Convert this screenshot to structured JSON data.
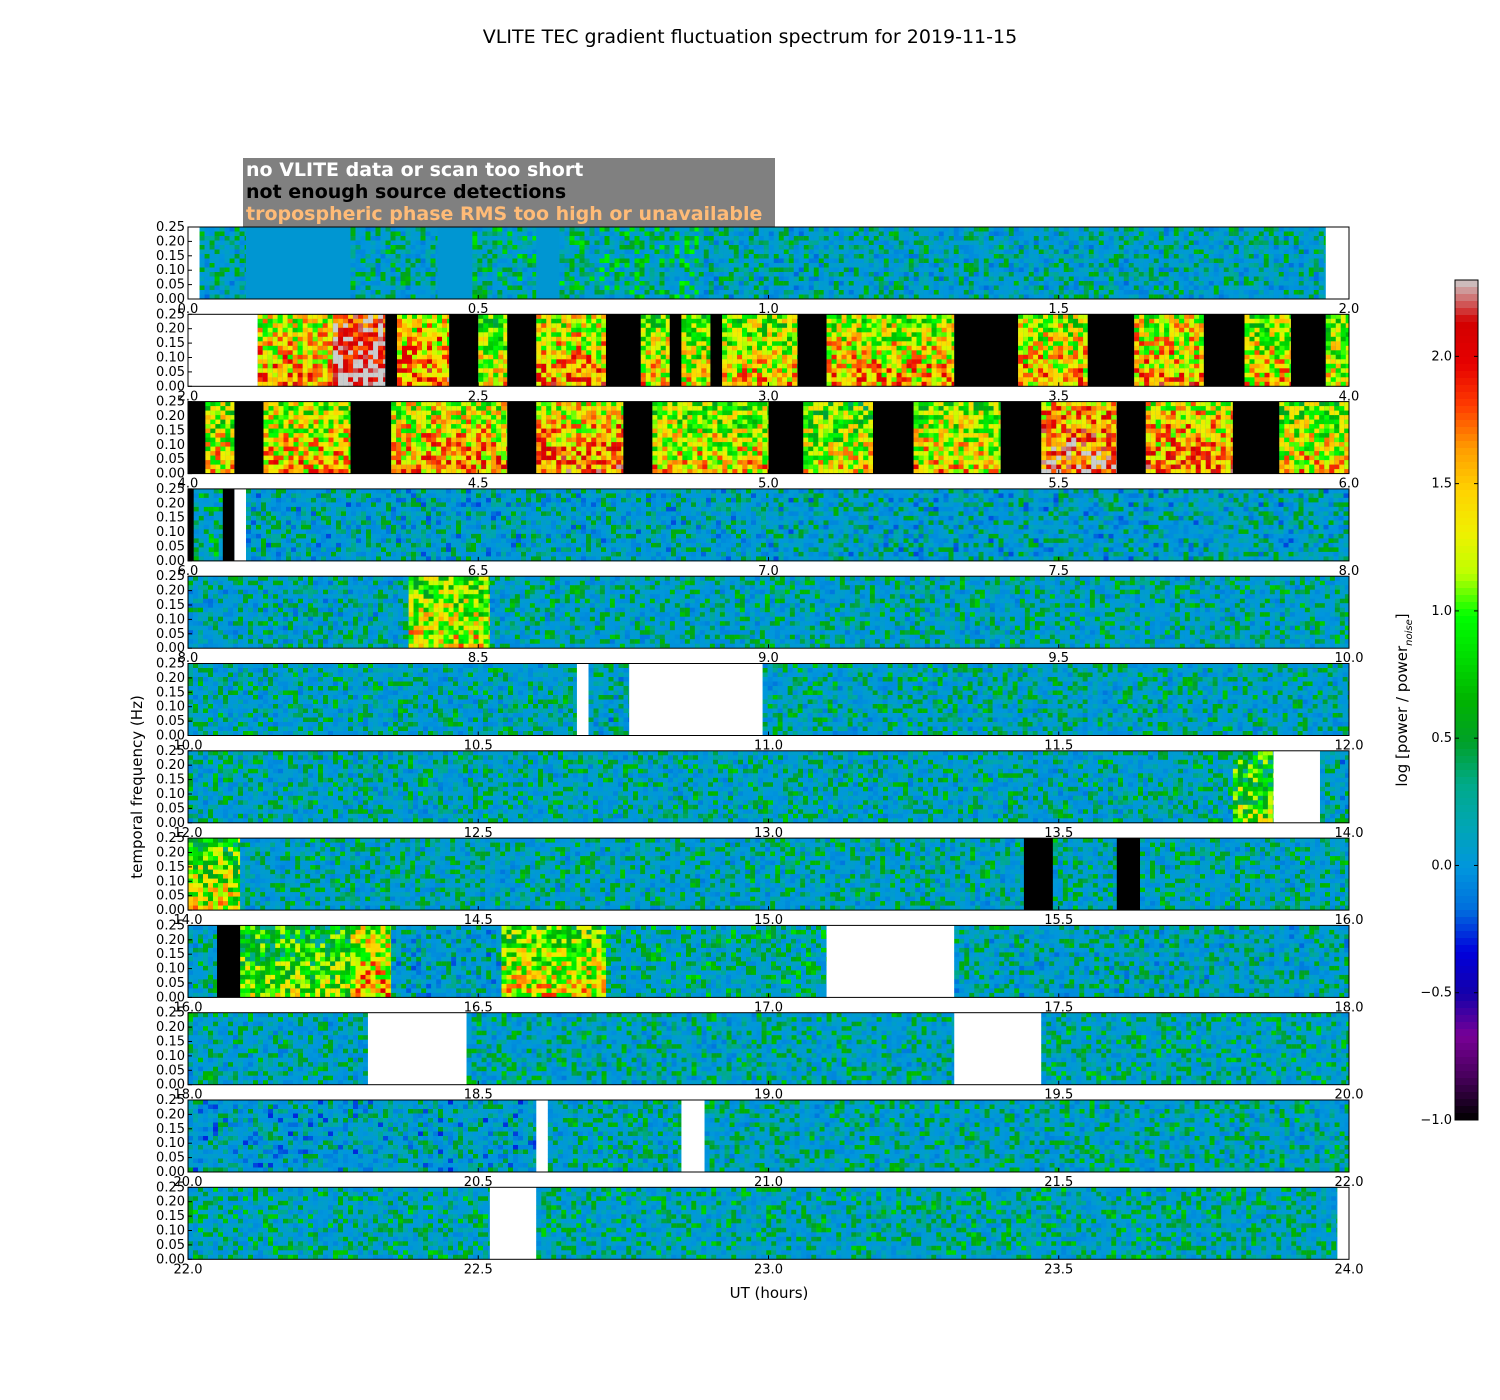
{
  "chart_data": {
    "type": "heatmap",
    "title": "VLITE TEC gradient fluctuation spectrum for 2019-11-15",
    "xlabel": "UT (hours)",
    "ylabel": "temporal frequency (Hz)",
    "ylim": [
      0,
      0.25
    ],
    "yticks": [
      "0.00",
      "0.05",
      "0.10",
      "0.15",
      "0.20",
      "0.25"
    ],
    "grid": false,
    "legend_position": "top-left",
    "panels": [
      {
        "xlim": [
          0,
          2
        ],
        "xticks": [
          "0.0",
          "0.5",
          "1.0",
          "1.5",
          "2.0"
        ]
      },
      {
        "xlim": [
          2,
          4
        ],
        "xticks": [
          "2.0",
          "2.5",
          "3.0",
          "3.5",
          "4.0"
        ]
      },
      {
        "xlim": [
          4,
          6
        ],
        "xticks": [
          "4.0",
          "4.5",
          "5.0",
          "5.5",
          "6.0"
        ]
      },
      {
        "xlim": [
          6,
          8
        ],
        "xticks": [
          "6.0",
          "6.5",
          "7.0",
          "7.5",
          "8.0"
        ]
      },
      {
        "xlim": [
          8,
          10
        ],
        "xticks": [
          "8.0",
          "8.5",
          "9.0",
          "9.5",
          "10.0"
        ]
      },
      {
        "xlim": [
          10,
          12
        ],
        "xticks": [
          "10.0",
          "10.5",
          "11.0",
          "11.5",
          "12.0"
        ]
      },
      {
        "xlim": [
          12,
          14
        ],
        "xticks": [
          "12.0",
          "12.5",
          "13.0",
          "13.5",
          "14.0"
        ]
      },
      {
        "xlim": [
          14,
          16
        ],
        "xticks": [
          "14.0",
          "14.5",
          "15.0",
          "15.5",
          "16.0"
        ]
      },
      {
        "xlim": [
          16,
          18
        ],
        "xticks": [
          "16.0",
          "16.5",
          "17.0",
          "17.5",
          "18.0"
        ]
      },
      {
        "xlim": [
          18,
          20
        ],
        "xticks": [
          "18.0",
          "18.5",
          "19.0",
          "19.5",
          "20.0"
        ]
      },
      {
        "xlim": [
          20,
          22
        ],
        "xticks": [
          "20.0",
          "20.5",
          "21.0",
          "21.5",
          "22.0"
        ]
      },
      {
        "xlim": [
          22,
          24
        ],
        "xticks": [
          "22.0",
          "22.5",
          "23.0",
          "23.5",
          "24.0"
        ]
      }
    ],
    "segments": [
      {
        "kind": "nodata",
        "start": 0.0,
        "end": 0.02
      },
      {
        "kind": "quiet",
        "start": 0.02,
        "end": 0.1,
        "level": 0.35
      },
      {
        "kind": "flat",
        "start": 0.1,
        "end": 0.28
      },
      {
        "kind": "quiet",
        "start": 0.28,
        "end": 0.43,
        "level": 0.4
      },
      {
        "kind": "flat",
        "start": 0.43,
        "end": 0.49
      },
      {
        "kind": "quiet",
        "start": 0.49,
        "end": 0.6,
        "level": 0.55
      },
      {
        "kind": "flat",
        "start": 0.6,
        "end": 0.64
      },
      {
        "kind": "quiet",
        "start": 0.64,
        "end": 0.88,
        "level": 0.6
      },
      {
        "kind": "quiet",
        "start": 0.88,
        "end": 1.96,
        "level": 0.35
      },
      {
        "kind": "nodata",
        "start": 1.96,
        "end": 2.0
      },
      {
        "kind": "nodata",
        "start": 2.0,
        "end": 2.12
      },
      {
        "kind": "active",
        "start": 2.12,
        "end": 2.25,
        "level": 1.2
      },
      {
        "kind": "active",
        "start": 2.25,
        "end": 2.34,
        "level": 2.0
      },
      {
        "kind": "nodet",
        "start": 2.34,
        "end": 2.36
      },
      {
        "kind": "active",
        "start": 2.36,
        "end": 2.45,
        "level": 1.3
      },
      {
        "kind": "nodet",
        "start": 2.45,
        "end": 2.5
      },
      {
        "kind": "active",
        "start": 2.5,
        "end": 2.55,
        "level": 0.9
      },
      {
        "kind": "nodet",
        "start": 2.55,
        "end": 2.6
      },
      {
        "kind": "active",
        "start": 2.6,
        "end": 2.72,
        "level": 1.2
      },
      {
        "kind": "nodet",
        "start": 2.72,
        "end": 2.78
      },
      {
        "kind": "active",
        "start": 2.78,
        "end": 2.83,
        "level": 1.0
      },
      {
        "kind": "nodet",
        "start": 2.83,
        "end": 2.85
      },
      {
        "kind": "active",
        "start": 2.85,
        "end": 2.9,
        "level": 0.9
      },
      {
        "kind": "nodet",
        "start": 2.9,
        "end": 2.92
      },
      {
        "kind": "active",
        "start": 2.92,
        "end": 3.05,
        "level": 1.0
      },
      {
        "kind": "nodet",
        "start": 3.05,
        "end": 3.1
      },
      {
        "kind": "active",
        "start": 3.1,
        "end": 3.32,
        "level": 1.1
      },
      {
        "kind": "nodet",
        "start": 3.32,
        "end": 3.43
      },
      {
        "kind": "active",
        "start": 3.43,
        "end": 3.55,
        "level": 1.1
      },
      {
        "kind": "nodet",
        "start": 3.55,
        "end": 3.63
      },
      {
        "kind": "active",
        "start": 3.63,
        "end": 3.75,
        "level": 1.2
      },
      {
        "kind": "nodet",
        "start": 3.75,
        "end": 3.82
      },
      {
        "kind": "active",
        "start": 3.82,
        "end": 3.9,
        "level": 1.0
      },
      {
        "kind": "nodet",
        "start": 3.9,
        "end": 3.96
      },
      {
        "kind": "active",
        "start": 3.96,
        "end": 4.0,
        "level": 0.9
      },
      {
        "kind": "nodet",
        "start": 4.0,
        "end": 4.03
      },
      {
        "kind": "active",
        "start": 4.03,
        "end": 4.08,
        "level": 1.0
      },
      {
        "kind": "nodet",
        "start": 4.08,
        "end": 4.13
      },
      {
        "kind": "active",
        "start": 4.13,
        "end": 4.28,
        "level": 1.1
      },
      {
        "kind": "nodet",
        "start": 4.28,
        "end": 4.35
      },
      {
        "kind": "active",
        "start": 4.35,
        "end": 4.55,
        "level": 1.2
      },
      {
        "kind": "nodet",
        "start": 4.55,
        "end": 4.6
      },
      {
        "kind": "active",
        "start": 4.6,
        "end": 4.75,
        "level": 1.3
      },
      {
        "kind": "nodet",
        "start": 4.75,
        "end": 4.8
      },
      {
        "kind": "active",
        "start": 4.8,
        "end": 5.0,
        "level": 1.0
      },
      {
        "kind": "nodet",
        "start": 5.0,
        "end": 5.06
      },
      {
        "kind": "active",
        "start": 5.06,
        "end": 5.18,
        "level": 0.9
      },
      {
        "kind": "nodet",
        "start": 5.18,
        "end": 5.25
      },
      {
        "kind": "active",
        "start": 5.25,
        "end": 5.4,
        "level": 1.0
      },
      {
        "kind": "nodet",
        "start": 5.4,
        "end": 5.47
      },
      {
        "kind": "active",
        "start": 5.47,
        "end": 5.6,
        "level": 1.5
      },
      {
        "kind": "nodet",
        "start": 5.6,
        "end": 5.65
      },
      {
        "kind": "active",
        "start": 5.65,
        "end": 5.8,
        "level": 1.3
      },
      {
        "kind": "nodet",
        "start": 5.8,
        "end": 5.88
      },
      {
        "kind": "active",
        "start": 5.88,
        "end": 6.0,
        "level": 1.0
      },
      {
        "kind": "nodet",
        "start": 6.0,
        "end": 6.01
      },
      {
        "kind": "quiet",
        "start": 6.01,
        "end": 6.06,
        "level": 0.5
      },
      {
        "kind": "nodet",
        "start": 6.06,
        "end": 6.08
      },
      {
        "kind": "nodata",
        "start": 6.08,
        "end": 6.1
      },
      {
        "kind": "quiet",
        "start": 6.1,
        "end": 7.0,
        "level": 0.3
      },
      {
        "kind": "quiet",
        "start": 7.0,
        "end": 8.0,
        "level": 0.3
      },
      {
        "kind": "quiet",
        "start": 8.0,
        "end": 8.38,
        "level": 0.35
      },
      {
        "kind": "active",
        "start": 8.38,
        "end": 8.52,
        "level": 0.9
      },
      {
        "kind": "quiet",
        "start": 8.52,
        "end": 10.0,
        "level": 0.4
      },
      {
        "kind": "quiet",
        "start": 10.0,
        "end": 10.67,
        "level": 0.4
      },
      {
        "kind": "nodata",
        "start": 10.67,
        "end": 10.69
      },
      {
        "kind": "quiet",
        "start": 10.69,
        "end": 10.76,
        "level": 0.3
      },
      {
        "kind": "nodata",
        "start": 10.76,
        "end": 10.99
      },
      {
        "kind": "quiet",
        "start": 10.99,
        "end": 12.0,
        "level": 0.4
      },
      {
        "kind": "quiet",
        "start": 12.0,
        "end": 13.8,
        "level": 0.4
      },
      {
        "kind": "active",
        "start": 13.8,
        "end": 13.87,
        "level": 0.6
      },
      {
        "kind": "nodata",
        "start": 13.87,
        "end": 13.95
      },
      {
        "kind": "quiet",
        "start": 13.95,
        "end": 14.0,
        "level": 0.3
      },
      {
        "kind": "active",
        "start": 14.0,
        "end": 14.09,
        "level": 0.8
      },
      {
        "kind": "quiet",
        "start": 14.09,
        "end": 15.44,
        "level": 0.4
      },
      {
        "kind": "nodet",
        "start": 15.44,
        "end": 15.49
      },
      {
        "kind": "quiet",
        "start": 15.49,
        "end": 15.6,
        "level": 0.4
      },
      {
        "kind": "nodet",
        "start": 15.6,
        "end": 15.64
      },
      {
        "kind": "quiet",
        "start": 15.64,
        "end": 16.0,
        "level": 0.4
      },
      {
        "kind": "quiet",
        "start": 16.0,
        "end": 16.05,
        "level": 0.4
      },
      {
        "kind": "nodet",
        "start": 16.05,
        "end": 16.09
      },
      {
        "kind": "active",
        "start": 16.09,
        "end": 16.28,
        "level": 0.6
      },
      {
        "kind": "active",
        "start": 16.28,
        "end": 16.35,
        "level": 1.1
      },
      {
        "kind": "quiet",
        "start": 16.35,
        "end": 16.54,
        "level": 0.3
      },
      {
        "kind": "active",
        "start": 16.54,
        "end": 16.72,
        "level": 0.9
      },
      {
        "kind": "quiet",
        "start": 16.72,
        "end": 17.1,
        "level": 0.5
      },
      {
        "kind": "nodata",
        "start": 17.1,
        "end": 17.32
      },
      {
        "kind": "quiet",
        "start": 17.32,
        "end": 18.0,
        "level": 0.35
      },
      {
        "kind": "quiet",
        "start": 18.0,
        "end": 18.31,
        "level": 0.4
      },
      {
        "kind": "nodata",
        "start": 18.31,
        "end": 18.48
      },
      {
        "kind": "quiet",
        "start": 18.48,
        "end": 19.32,
        "level": 0.4
      },
      {
        "kind": "nodata",
        "start": 19.32,
        "end": 19.47
      },
      {
        "kind": "quiet",
        "start": 19.47,
        "end": 20.0,
        "level": 0.45
      },
      {
        "kind": "quiet",
        "start": 20.0,
        "end": 20.6,
        "level": 0.25
      },
      {
        "kind": "nodata",
        "start": 20.6,
        "end": 20.62
      },
      {
        "kind": "quiet",
        "start": 20.62,
        "end": 20.85,
        "level": 0.4
      },
      {
        "kind": "nodata",
        "start": 20.85,
        "end": 20.89
      },
      {
        "kind": "quiet",
        "start": 20.89,
        "end": 22.0,
        "level": 0.4
      },
      {
        "kind": "quiet",
        "start": 22.0,
        "end": 22.52,
        "level": 0.45
      },
      {
        "kind": "nodata",
        "start": 22.52,
        "end": 22.6
      },
      {
        "kind": "quiet",
        "start": 22.6,
        "end": 23.98,
        "level": 0.45
      },
      {
        "kind": "nodata",
        "start": 23.98,
        "end": 24.0
      }
    ],
    "colorbar": {
      "label": "log [power / power",
      "label_sub": "noise",
      "label_end": "]",
      "range": [
        -1.0,
        2.3
      ],
      "ticks": [
        "−1.0",
        "−0.5",
        "0.0",
        "0.5",
        "1.0",
        "1.5",
        "2.0"
      ],
      "tick_values": [
        -1.0,
        -0.5,
        0.0,
        0.5,
        1.0,
        1.5,
        2.0
      ],
      "colormap": "nipy_spectral"
    },
    "legend": [
      {
        "text": "no VLITE data or scan too short",
        "color": "#ffffff",
        "marks": "white"
      },
      {
        "text": "not enough source detections",
        "color": "#000000",
        "marks": "black"
      },
      {
        "text": "tropospheric phase RMS too high or unavailable",
        "color": "#ffbb77",
        "marks": "translucent"
      }
    ],
    "legend_box_color": "#808080"
  }
}
